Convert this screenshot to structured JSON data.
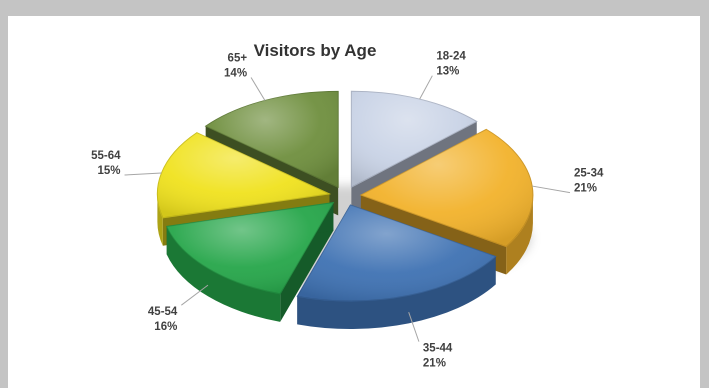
{
  "chart_data": {
    "type": "pie",
    "style": "3d-exploded",
    "title": "Visitors by Age",
    "categories": [
      "18-24",
      "25-34",
      "35-44",
      "45-54",
      "55-64",
      "65+"
    ],
    "values": [
      13,
      21,
      21,
      16,
      15,
      14
    ],
    "labels": [
      "13%",
      "21%",
      "21%",
      "16%",
      "15%",
      "14%"
    ],
    "colors": [
      "#c9d3e6",
      "#f2b22b",
      "#3f72b3",
      "#26a64a",
      "#f0e21e",
      "#6f8f3e"
    ],
    "legend": "none (category labels on slices)"
  }
}
